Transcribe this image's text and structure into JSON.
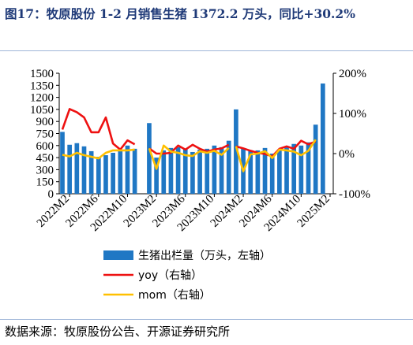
{
  "figure": {
    "title": "图17：牧原股份 1-2 月销售生猪 1372.2 万头，同比+30.2%",
    "source": "数据来源：牧原股份公告、开源证券研究所"
  },
  "colors": {
    "bars": "#1f77c4",
    "yoy": "#ee1111",
    "mom": "#ffc000",
    "title": "#1f3a78"
  },
  "chart_data": {
    "type": "bar",
    "x_tick_labels": [
      "2022M2",
      "2022M6",
      "2022M10",
      "2023M2",
      "2023M6",
      "2023M10",
      "2024M2",
      "2024M6",
      "2024M10",
      "2025M2"
    ],
    "left_axis": {
      "ticks": [
        "0",
        "150",
        "300",
        "450",
        "600",
        "750",
        "900",
        "1050",
        "1200",
        "1350",
        "1500"
      ],
      "ylim": [
        0,
        1500
      ]
    },
    "right_axis": {
      "ticks": [
        "-100%",
        "0%",
        "100%",
        "200%"
      ],
      "ylim": [
        -100,
        200
      ]
    },
    "legend_position": "bottom",
    "series": [
      {
        "name": "生猪出栏量（万头，左轴）",
        "kind": "bar",
        "axis": "left",
        "segments": [
          {
            "start": "2022M1",
            "values": [
              770,
              610,
              630,
              590,
              530,
              460,
              480,
              510,
              550,
              600,
              560
            ]
          },
          {
            "start": "2023M1",
            "values": [
              880,
              450,
              540,
              570,
              580,
              560,
              520,
              550,
              560,
              600,
              580,
              660
            ]
          },
          {
            "start": "2024M1",
            "values": [
              1050,
              560,
              540,
              540,
              570,
              500,
              550,
              590,
              620,
              600,
              640,
              860
            ]
          },
          {
            "start": "2025M1",
            "values": [
              1372.2
            ]
          }
        ]
      },
      {
        "name": "yoy（右轴）",
        "kind": "line",
        "axis": "right",
        "segments": [
          {
            "start": "2022M1",
            "values": [
              60,
              111,
              103,
              90,
              53,
              53,
              90,
              25,
              10,
              33,
              23
            ]
          },
          {
            "start": "2023M1",
            "values": [
              13,
              0,
              0,
              2,
              20,
              10,
              22,
              12,
              5,
              10,
              13,
              22
            ]
          },
          {
            "start": "2024M1",
            "values": [
              18,
              13,
              7,
              2,
              -1,
              -7,
              12,
              18,
              12,
              32,
              23,
              30
            ]
          }
        ]
      },
      {
        "name": "mom（右轴）",
        "kind": "line",
        "axis": "right",
        "segments": [
          {
            "start": "2022M1",
            "values": [
              -3,
              -7,
              2,
              -4,
              -8,
              -12,
              2,
              8,
              8,
              8,
              10
            ]
          },
          {
            "start": "2023M1",
            "values": [
              13,
              -38,
              20,
              5,
              2,
              -4,
              -6,
              6,
              2,
              7,
              -3,
              14
            ]
          },
          {
            "start": "2024M1",
            "values": [
              18,
              -44,
              -2,
              0,
              6,
              -11,
              10,
              8,
              5,
              -4,
              7,
              35
            ]
          }
        ]
      }
    ]
  }
}
